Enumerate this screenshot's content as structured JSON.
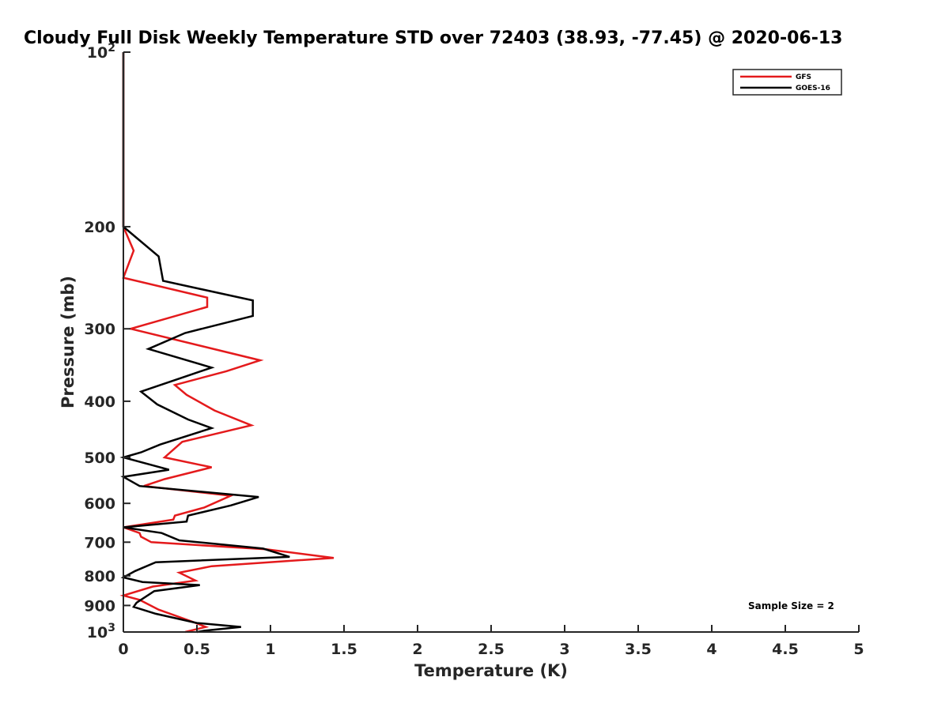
{
  "chart_data": {
    "type": "line",
    "title": "Cloudy Full Disk Weekly Temperature STD over 72403 (38.93, -77.45) @ 2020-06-13",
    "xlabel": "Temperature (K)",
    "ylabel": "Pressure (mb)",
    "xlim": [
      0,
      5
    ],
    "ylim": [
      1000,
      100
    ],
    "y_scale": "log",
    "y_reversed": true,
    "x_ticks": [
      "0",
      "0.5",
      "1",
      "1.5",
      "2",
      "2.5",
      "3",
      "3.5",
      "4",
      "4.5",
      "5"
    ],
    "y_ticks": [
      {
        "value": 100,
        "base": "10",
        "exp": "2"
      },
      {
        "value": 200,
        "label": "200"
      },
      {
        "value": 300,
        "label": "300"
      },
      {
        "value": 400,
        "label": "400"
      },
      {
        "value": 500,
        "label": "500"
      },
      {
        "value": 600,
        "label": "600"
      },
      {
        "value": 700,
        "label": "700"
      },
      {
        "value": 800,
        "label": "800"
      },
      {
        "value": 900,
        "label": "900"
      },
      {
        "value": 1000,
        "base": "10",
        "exp": "3"
      }
    ],
    "grid": false,
    "legend_position": "top-right",
    "annotation": "Sample Size = 2",
    "series": [
      {
        "name": "GFS",
        "color": "#e41a1c",
        "points": [
          [
            0,
            100
          ],
          [
            0,
            150
          ],
          [
            0,
            200
          ],
          [
            0.07,
            220
          ],
          [
            0,
            245
          ],
          [
            0.57,
            265
          ],
          [
            0.57,
            275
          ],
          [
            0.05,
            300
          ],
          [
            0.93,
            340
          ],
          [
            0.7,
            355
          ],
          [
            0.35,
            375
          ],
          [
            0.43,
            390
          ],
          [
            0.62,
            415
          ],
          [
            0.87,
            440
          ],
          [
            0.4,
            470
          ],
          [
            0.28,
            500
          ],
          [
            0.6,
            520
          ],
          [
            0.28,
            545
          ],
          [
            0.14,
            560
          ],
          [
            0.73,
            582
          ],
          [
            0.55,
            610
          ],
          [
            0.35,
            630
          ],
          [
            0.34,
            640
          ],
          [
            0,
            660
          ],
          [
            0.11,
            675
          ],
          [
            0.12,
            685
          ],
          [
            0.19,
            700
          ],
          [
            0.97,
            720
          ],
          [
            1.43,
            745
          ],
          [
            0.6,
            770
          ],
          [
            0.38,
            790
          ],
          [
            0.49,
            815
          ],
          [
            0.2,
            835
          ],
          [
            0,
            865
          ],
          [
            0.11,
            880
          ],
          [
            0.24,
            915
          ],
          [
            0.47,
            960
          ],
          [
            0.56,
            980
          ],
          [
            0.42,
            1000
          ]
        ]
      },
      {
        "name": "GOES-16",
        "color": "#000000",
        "points": [
          [
            0,
            100
          ],
          [
            0,
            150
          ],
          [
            0,
            200
          ],
          [
            0.24,
            225
          ],
          [
            0.27,
            248
          ],
          [
            0.88,
            268
          ],
          [
            0.88,
            285
          ],
          [
            0.42,
            305
          ],
          [
            0.17,
            325
          ],
          [
            0.6,
            350
          ],
          [
            0.43,
            362
          ],
          [
            0.12,
            385
          ],
          [
            0.23,
            405
          ],
          [
            0.44,
            430
          ],
          [
            0.6,
            445
          ],
          [
            0.25,
            475
          ],
          [
            0.12,
            490
          ],
          [
            0,
            500
          ],
          [
            0.31,
            525
          ],
          [
            0,
            540
          ],
          [
            0.11,
            560
          ],
          [
            0.92,
            585
          ],
          [
            0.73,
            605
          ],
          [
            0.44,
            630
          ],
          [
            0.43,
            645
          ],
          [
            0,
            660
          ],
          [
            0.26,
            675
          ],
          [
            0.38,
            695
          ],
          [
            0.95,
            718
          ],
          [
            1.13,
            742
          ],
          [
            0.22,
            758
          ],
          [
            0.08,
            785
          ],
          [
            0,
            805
          ],
          [
            0.13,
            820
          ],
          [
            0.52,
            830
          ],
          [
            0.21,
            850
          ],
          [
            0.09,
            890
          ],
          [
            0.07,
            905
          ],
          [
            0.22,
            930
          ],
          [
            0.5,
            965
          ],
          [
            0.8,
            980
          ],
          [
            0.55,
            995
          ],
          [
            0.5,
            1000
          ]
        ]
      }
    ]
  }
}
